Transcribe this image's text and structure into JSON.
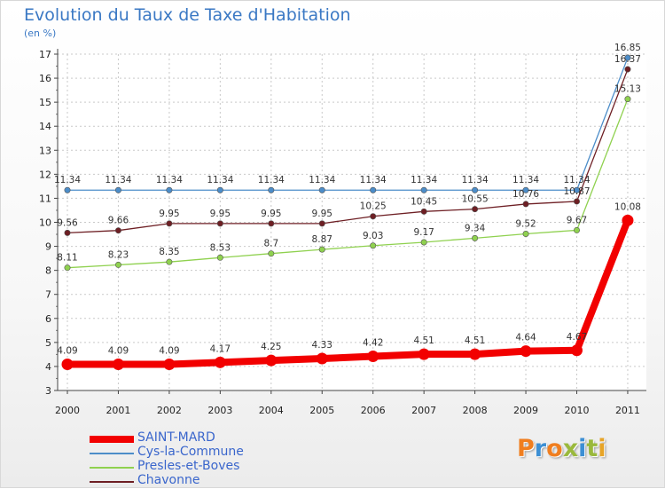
{
  "title": "Evolution du Taux de Taxe d'Habitation",
  "subtitle": "(en %)",
  "brand": {
    "text": "Proxiti",
    "letter_colors": [
      "#f07e1f",
      "#3c8fd4",
      "#f07e1f",
      "#9ab93c",
      "#3c8fd4",
      "#9ab93c",
      "#e7a427"
    ]
  },
  "chart_data": {
    "type": "line",
    "x": [
      "2000",
      "2001",
      "2002",
      "2003",
      "2004",
      "2005",
      "2006",
      "2007",
      "2008",
      "2009",
      "2010",
      "2011"
    ],
    "ylim": [
      3,
      17
    ],
    "yticks": [
      "3",
      "4",
      "5",
      "6",
      "7",
      "8",
      "9",
      "10",
      "11",
      "12",
      "13",
      "14",
      "15",
      "16",
      "17"
    ],
    "grid": true,
    "legend_position": "bottom-left",
    "series": [
      {
        "name": "SAINT-MARD",
        "color": "#f20000",
        "emphasis": true,
        "values": [
          4.09,
          4.09,
          4.09,
          4.17,
          4.25,
          4.33,
          4.42,
          4.51,
          4.51,
          4.64,
          4.67,
          10.08
        ],
        "labels": [
          "4.09",
          "4.09",
          "4.09",
          "4.17",
          "4.25",
          "4.33",
          "4.42",
          "4.51",
          "4.51",
          "4.64",
          "4.67",
          "10.08"
        ]
      },
      {
        "name": "Cys-la-Commune",
        "color": "#4c8dc9",
        "values": [
          11.34,
          11.34,
          11.34,
          11.34,
          11.34,
          11.34,
          11.34,
          11.34,
          11.34,
          11.34,
          11.34,
          16.85
        ],
        "labels": [
          "11.34",
          "11.34",
          "11.34",
          "11.34",
          "11.34",
          "11.34",
          "11.34",
          "11.34",
          "11.34",
          "11.34",
          "11.34",
          "16.85"
        ]
      },
      {
        "name": "Presles-et-Boves",
        "color": "#8fd14f",
        "values": [
          8.11,
          8.23,
          8.35,
          8.53,
          8.7,
          8.87,
          9.03,
          9.17,
          9.34,
          9.52,
          9.67,
          15.13
        ],
        "labels": [
          "8.11",
          "8.23",
          "8.35",
          "8.53",
          "8.7",
          "8.87",
          "9.03",
          "9.17",
          "9.34",
          "9.52",
          "9.67",
          "15.13"
        ]
      },
      {
        "name": "Chavonne",
        "color": "#6e1f24",
        "values": [
          9.56,
          9.66,
          9.95,
          9.95,
          9.95,
          9.95,
          10.25,
          10.45,
          10.55,
          10.76,
          10.87,
          16.37
        ],
        "labels": [
          "9.56",
          "9.66",
          "9.95",
          "9.95",
          "9.95",
          "9.95",
          "10.25",
          "10.45",
          "10.55",
          "10.76",
          "10.87",
          "16.37"
        ]
      }
    ]
  }
}
